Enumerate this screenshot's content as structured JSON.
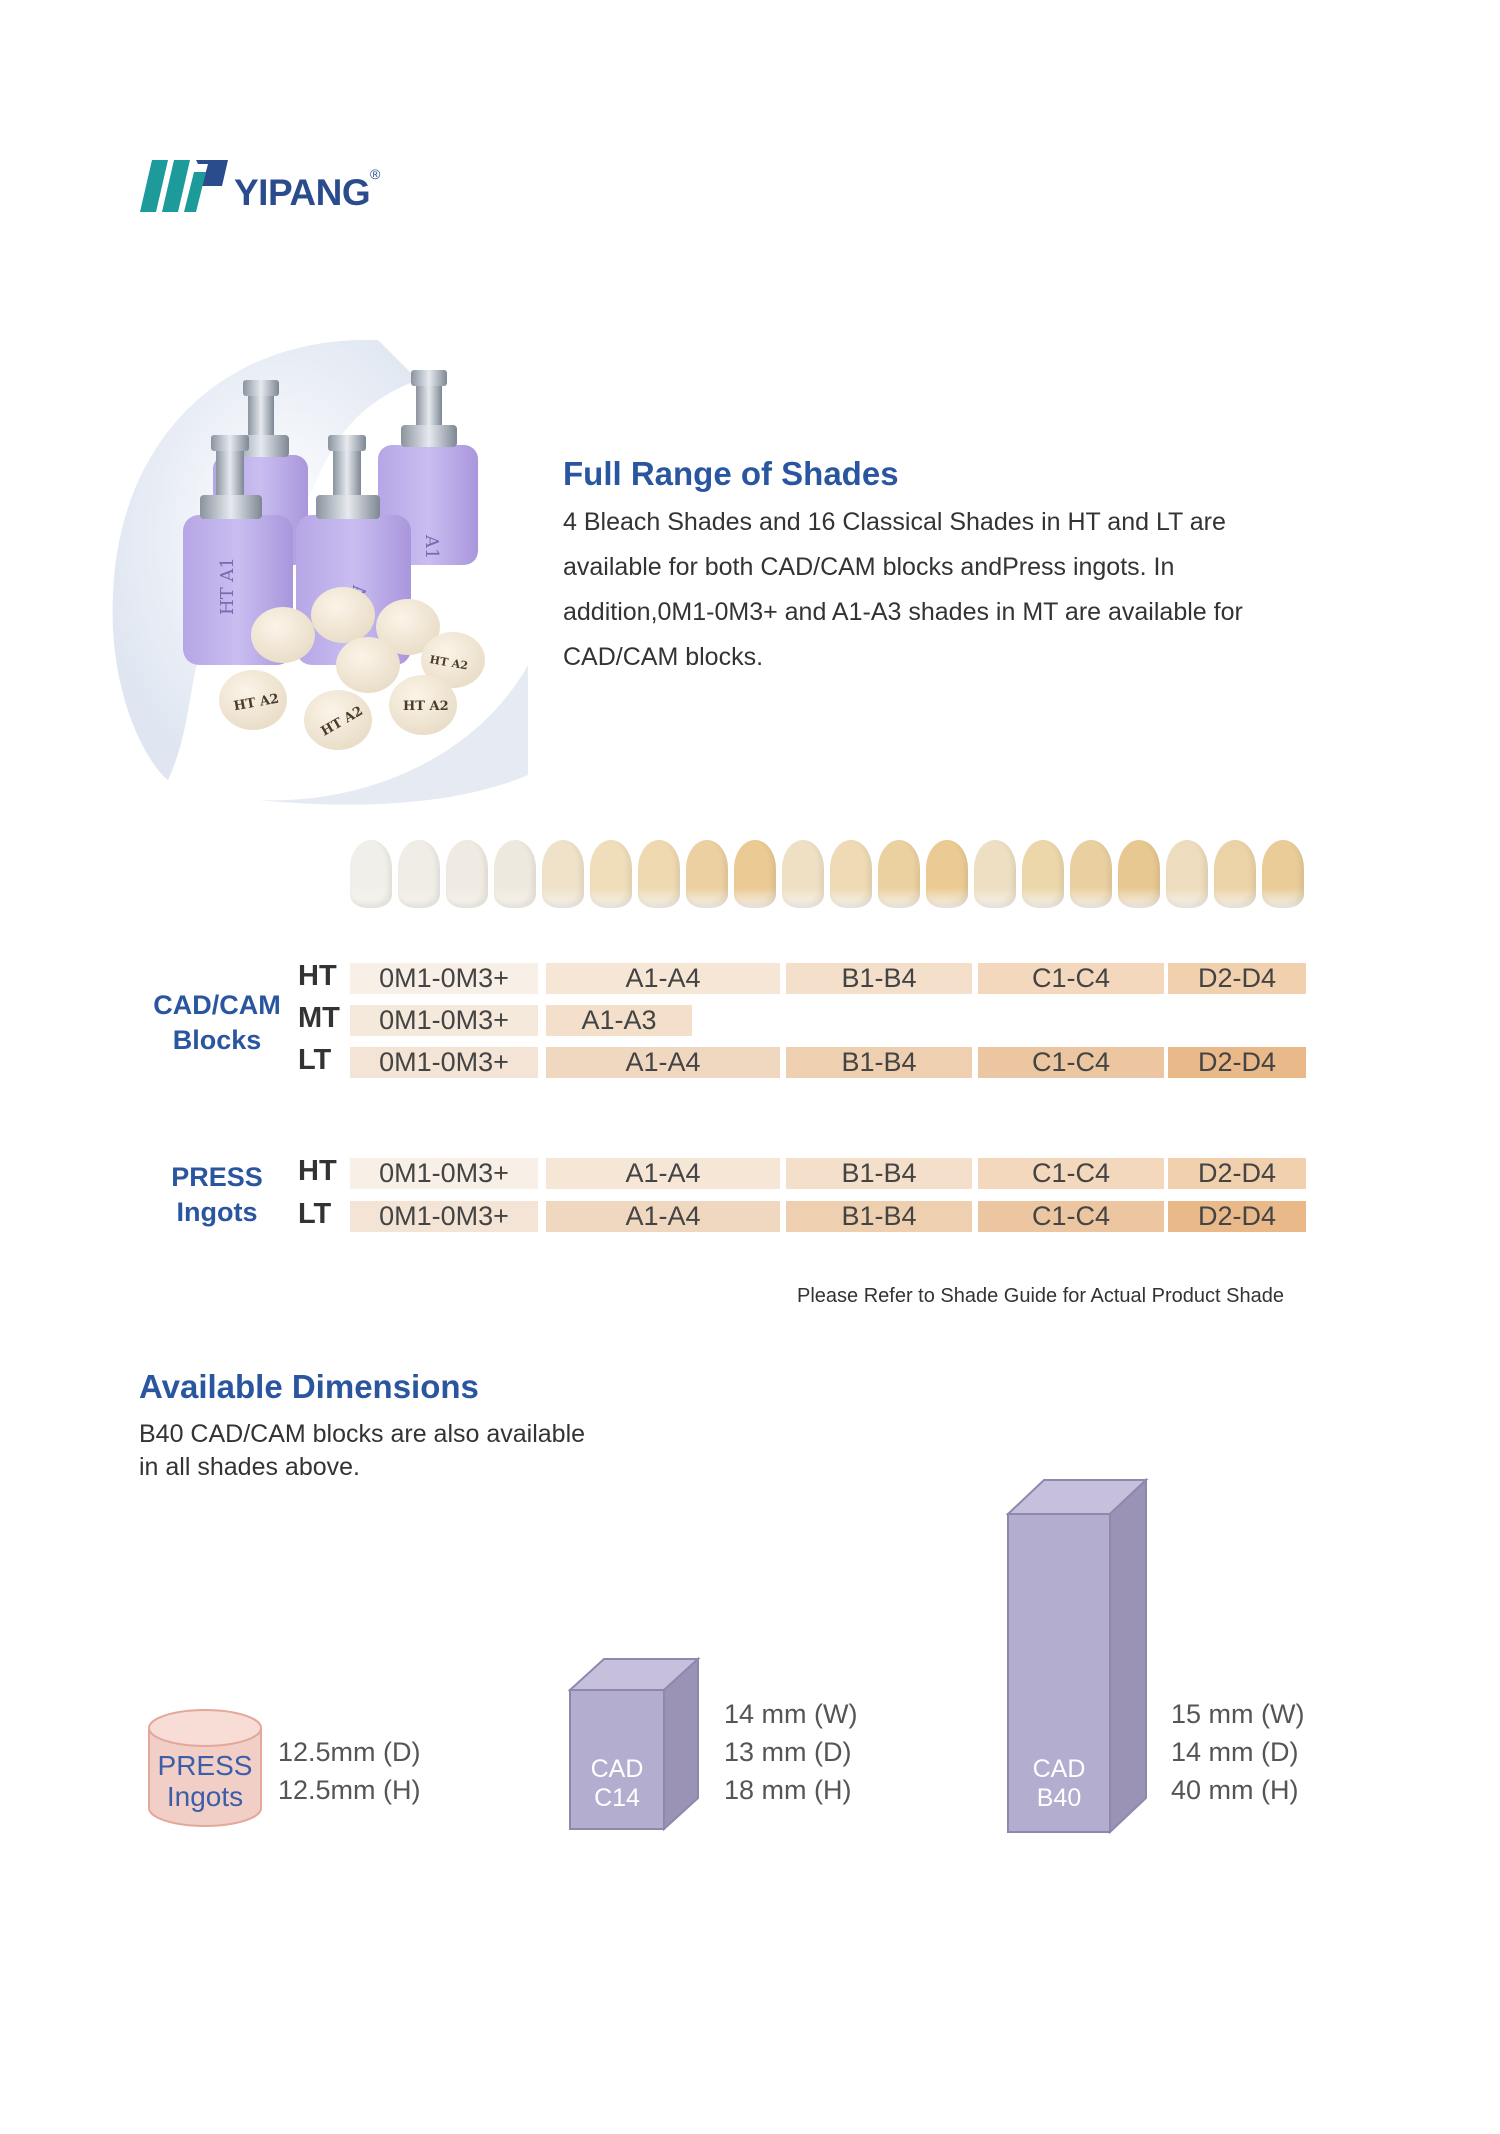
{
  "brand": {
    "name": "YIPANG",
    "reg_mark": "®"
  },
  "colors": {
    "brand_blue": "#2a56a0",
    "logo_teal": "#1d9a9a",
    "block_purple": "#b3add0",
    "press_pink": "#f0c9bf"
  },
  "intro": {
    "title": "Full Range of Shades",
    "body": "4 Bleach Shades and 16 Classical Shades in HT and LT are available for both CAD/CAM blocks andPress ingots. In addition,0M1-0M3+ and A1-A3 shades in MT are available for CAD/CAM blocks."
  },
  "product_image": {
    "block_labels": [
      "HT A1",
      "A1",
      "A1"
    ],
    "ingot_labels": [
      "HT A2",
      "HT A2",
      "HT A2",
      "HT A2"
    ]
  },
  "shade_strip": {
    "tooth_count": 20,
    "tooth_colors": [
      "#f1efe9",
      "#f0ede6",
      "#efebe2",
      "#eee9de",
      "#efe2c9",
      "#f0ddb9",
      "#efd9b1",
      "#ecd0a2",
      "#ebca94",
      "#efe0c4",
      "#eedab4",
      "#ecd1a0",
      "#ebcb93",
      "#eedfc2",
      "#ecd7ab",
      "#ead0a0",
      "#e8c891",
      "#eddcbd",
      "#ebd3a7",
      "#e9cc98"
    ]
  },
  "cadcam": {
    "label_line1": "CAD/CAM",
    "label_line2": "Blocks",
    "rows": [
      {
        "grade": "HT",
        "cells": [
          "0M1-0M3+",
          "A1-A4",
          "B1-B4",
          "C1-C4",
          "D2-D4"
        ]
      },
      {
        "grade": "MT",
        "cells": [
          "0M1-0M3+",
          "A1-A3"
        ]
      },
      {
        "grade": "LT",
        "cells": [
          "0M1-0M3+",
          "A1-A4",
          "B1-B4",
          "C1-C4",
          "D2-D4"
        ]
      }
    ]
  },
  "press": {
    "label_line1": "PRESS",
    "label_line2": "Ingots",
    "rows": [
      {
        "grade": "HT",
        "cells": [
          "0M1-0M3+",
          "A1-A4",
          "B1-B4",
          "C1-C4",
          "D2-D4"
        ]
      },
      {
        "grade": "LT",
        "cells": [
          "0M1-0M3+",
          "A1-A4",
          "B1-B4",
          "C1-C4",
          "D2-D4"
        ]
      }
    ]
  },
  "note": "Please Refer to Shade Guide for Actual Product Shade",
  "dimensions": {
    "title": "Available Dimensions",
    "subtitle_line1": "B40 CAD/CAM blocks are also available",
    "subtitle_line2": "in all shades above.",
    "items": [
      {
        "label_line1": "PRESS",
        "label_line2": "Ingots",
        "specs": [
          "12.5mm (D)",
          "12.5mm (H)"
        ]
      },
      {
        "label_line1": "CAD",
        "label_line2": "C14",
        "specs": [
          "14 mm (W)",
          "13 mm (D)",
          "18 mm (H)"
        ]
      },
      {
        "label_line1": "CAD",
        "label_line2": "B40",
        "specs": [
          "15 mm (W)",
          "14 mm (D)",
          "40 mm (H)"
        ]
      }
    ]
  }
}
